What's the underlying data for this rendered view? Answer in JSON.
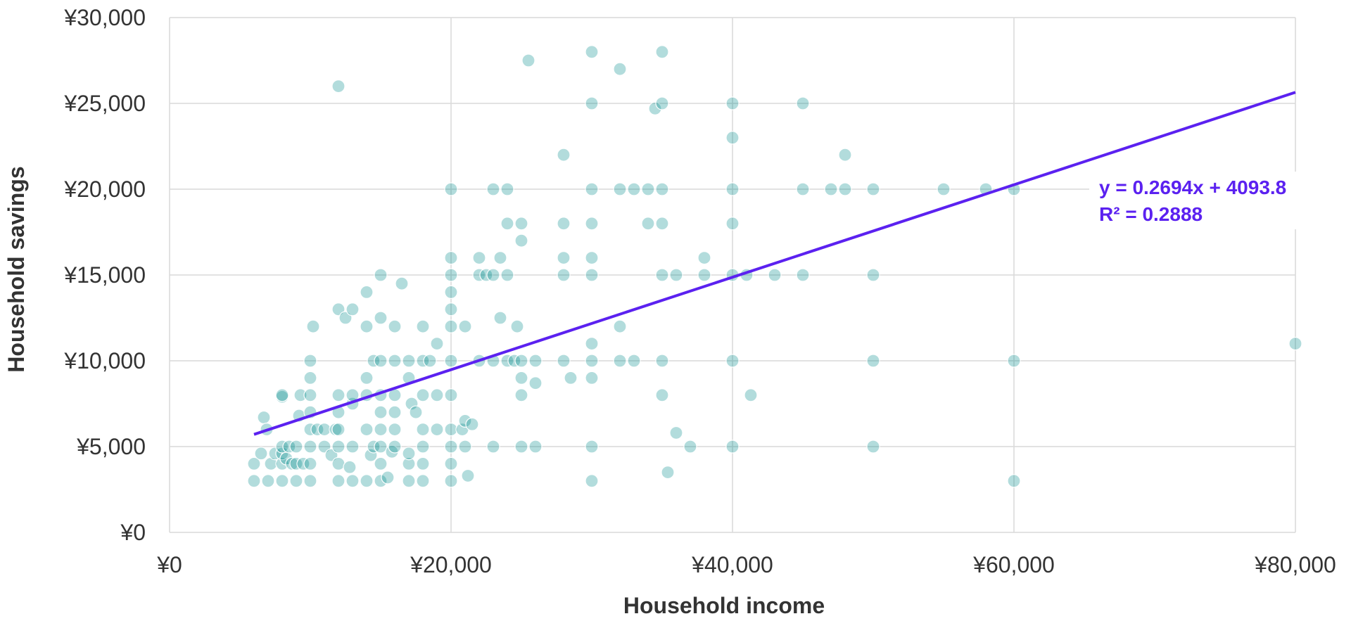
{
  "chart_data": {
    "type": "scatter",
    "title": "",
    "xlabel": "Household income",
    "ylabel": "Household savings",
    "xlim": [
      0,
      80000
    ],
    "ylim": [
      0,
      30000
    ],
    "x_ticks": [
      0,
      20000,
      40000,
      60000,
      80000
    ],
    "y_ticks": [
      0,
      5000,
      10000,
      15000,
      20000,
      25000,
      30000
    ],
    "x_tick_labels": [
      "¥0",
      "¥20,000",
      "¥40,000",
      "¥60,000",
      "¥80,000"
    ],
    "y_tick_labels": [
      "¥0",
      "¥5,000",
      "¥10,000",
      "¥15,000",
      "¥20,000",
      "¥25,000",
      "¥30,000"
    ],
    "grid": true,
    "point_color": "#008B8B",
    "trendline": {
      "type": "linear",
      "slope": 0.2694,
      "intercept": 4093.8,
      "x_range": [
        6000,
        80000
      ],
      "color": "#5B21F0",
      "equation_text": "y = 0.2694x + 4093.8",
      "r2_text": "R² = 0.2888"
    },
    "series": [
      {
        "points": [
          [
            6000,
            3000
          ],
          [
            6000,
            4000
          ],
          [
            6500,
            4600
          ],
          [
            6700,
            6700
          ],
          [
            6900,
            6000
          ],
          [
            7000,
            3000
          ],
          [
            7200,
            4000
          ],
          [
            7500,
            4600
          ],
          [
            8000,
            3000
          ],
          [
            8000,
            4000
          ],
          [
            8000,
            4600
          ],
          [
            8000,
            5000
          ],
          [
            8000,
            7900
          ],
          [
            8000,
            8000
          ],
          [
            8300,
            4300
          ],
          [
            8500,
            5000
          ],
          [
            8700,
            4000
          ],
          [
            9000,
            3000
          ],
          [
            9000,
            4000
          ],
          [
            9000,
            5000
          ],
          [
            9200,
            6800
          ],
          [
            9300,
            8000
          ],
          [
            9500,
            4000
          ],
          [
            10000,
            3000
          ],
          [
            10000,
            4000
          ],
          [
            10000,
            5000
          ],
          [
            10000,
            6000
          ],
          [
            10000,
            7000
          ],
          [
            10000,
            8000
          ],
          [
            10000,
            9000
          ],
          [
            10000,
            10000
          ],
          [
            10200,
            12000
          ],
          [
            10500,
            6000
          ],
          [
            11000,
            5000
          ],
          [
            11000,
            6000
          ],
          [
            11500,
            4500
          ],
          [
            11800,
            6000
          ],
          [
            12000,
            3000
          ],
          [
            12000,
            4000
          ],
          [
            12000,
            5000
          ],
          [
            12000,
            6000
          ],
          [
            12000,
            7000
          ],
          [
            12000,
            8000
          ],
          [
            12000,
            13000
          ],
          [
            12000,
            26000
          ],
          [
            12500,
            12500
          ],
          [
            12800,
            3800
          ],
          [
            13000,
            3000
          ],
          [
            13000,
            5000
          ],
          [
            13000,
            7500
          ],
          [
            13000,
            8000
          ],
          [
            13000,
            13000
          ],
          [
            14000,
            3000
          ],
          [
            14000,
            6000
          ],
          [
            14000,
            8000
          ],
          [
            14000,
            9000
          ],
          [
            14000,
            12000
          ],
          [
            14000,
            14000
          ],
          [
            14300,
            4500
          ],
          [
            14500,
            5000
          ],
          [
            14500,
            10000
          ],
          [
            15000,
            3000
          ],
          [
            15000,
            4000
          ],
          [
            15000,
            5000
          ],
          [
            15000,
            6000
          ],
          [
            15000,
            7000
          ],
          [
            15000,
            8000
          ],
          [
            15000,
            10000
          ],
          [
            15000,
            12500
          ],
          [
            15000,
            15000
          ],
          [
            15500,
            3200
          ],
          [
            15800,
            4700
          ],
          [
            16000,
            5000
          ],
          [
            16000,
            6000
          ],
          [
            16000,
            7000
          ],
          [
            16000,
            8000
          ],
          [
            16000,
            10000
          ],
          [
            16000,
            12000
          ],
          [
            16500,
            14500
          ],
          [
            17000,
            3000
          ],
          [
            17000,
            4000
          ],
          [
            17000,
            4600
          ],
          [
            17000,
            9000
          ],
          [
            17000,
            10000
          ],
          [
            17200,
            7500
          ],
          [
            17500,
            7000
          ],
          [
            18000,
            3000
          ],
          [
            18000,
            4000
          ],
          [
            18000,
            5000
          ],
          [
            18000,
            6000
          ],
          [
            18000,
            8000
          ],
          [
            18000,
            10000
          ],
          [
            18000,
            12000
          ],
          [
            18500,
            10000
          ],
          [
            19000,
            6000
          ],
          [
            19000,
            8000
          ],
          [
            19000,
            11000
          ],
          [
            20000,
            3000
          ],
          [
            20000,
            4000
          ],
          [
            20000,
            5000
          ],
          [
            20000,
            6000
          ],
          [
            20000,
            8000
          ],
          [
            20000,
            10000
          ],
          [
            20000,
            12000
          ],
          [
            20000,
            13000
          ],
          [
            20000,
            14000
          ],
          [
            20000,
            15000
          ],
          [
            20000,
            16000
          ],
          [
            20000,
            20000
          ],
          [
            20800,
            6000
          ],
          [
            21000,
            5000
          ],
          [
            21000,
            6500
          ],
          [
            21000,
            12000
          ],
          [
            21200,
            3300
          ],
          [
            21500,
            6300
          ],
          [
            22000,
            10000
          ],
          [
            22000,
            15000
          ],
          [
            22000,
            16000
          ],
          [
            22500,
            15000
          ],
          [
            23000,
            5000
          ],
          [
            23000,
            10000
          ],
          [
            23000,
            15000
          ],
          [
            23000,
            20000
          ],
          [
            23500,
            12500
          ],
          [
            23500,
            16000
          ],
          [
            24000,
            10000
          ],
          [
            24000,
            15000
          ],
          [
            24000,
            18000
          ],
          [
            24000,
            20000
          ],
          [
            24500,
            10000
          ],
          [
            24700,
            12000
          ],
          [
            25000,
            5000
          ],
          [
            25000,
            8000
          ],
          [
            25000,
            9000
          ],
          [
            25000,
            10000
          ],
          [
            25000,
            17000
          ],
          [
            25000,
            18000
          ],
          [
            25500,
            27500
          ],
          [
            26000,
            5000
          ],
          [
            26000,
            8700
          ],
          [
            26000,
            10000
          ],
          [
            28000,
            10000
          ],
          [
            28000,
            15000
          ],
          [
            28000,
            16000
          ],
          [
            28000,
            18000
          ],
          [
            28000,
            22000
          ],
          [
            28500,
            9000
          ],
          [
            30000,
            3000
          ],
          [
            30000,
            5000
          ],
          [
            30000,
            9000
          ],
          [
            30000,
            10000
          ],
          [
            30000,
            11000
          ],
          [
            30000,
            15000
          ],
          [
            30000,
            16000
          ],
          [
            30000,
            18000
          ],
          [
            30000,
            20000
          ],
          [
            30000,
            25000
          ],
          [
            30000,
            28000
          ],
          [
            32000,
            10000
          ],
          [
            32000,
            12000
          ],
          [
            32000,
            20000
          ],
          [
            32000,
            27000
          ],
          [
            33000,
            10000
          ],
          [
            33000,
            20000
          ],
          [
            34000,
            18000
          ],
          [
            34000,
            20000
          ],
          [
            34500,
            24700
          ],
          [
            35000,
            8000
          ],
          [
            35000,
            10000
          ],
          [
            35000,
            15000
          ],
          [
            35000,
            18000
          ],
          [
            35000,
            20000
          ],
          [
            35000,
            25000
          ],
          [
            35000,
            28000
          ],
          [
            35400,
            3500
          ],
          [
            36000,
            5800
          ],
          [
            36000,
            15000
          ],
          [
            37000,
            5000
          ],
          [
            38000,
            15000
          ],
          [
            38000,
            16000
          ],
          [
            40000,
            5000
          ],
          [
            40000,
            10000
          ],
          [
            40000,
            15000
          ],
          [
            40000,
            18000
          ],
          [
            40000,
            20000
          ],
          [
            40000,
            23000
          ],
          [
            40000,
            25000
          ],
          [
            41000,
            15000
          ],
          [
            41300,
            8000
          ],
          [
            43000,
            15000
          ],
          [
            45000,
            15000
          ],
          [
            45000,
            20000
          ],
          [
            45000,
            25000
          ],
          [
            47000,
            20000
          ],
          [
            48000,
            20000
          ],
          [
            48000,
            22000
          ],
          [
            50000,
            5000
          ],
          [
            50000,
            10000
          ],
          [
            50000,
            15000
          ],
          [
            50000,
            20000
          ],
          [
            55000,
            20000
          ],
          [
            58000,
            20000
          ],
          [
            60000,
            3000
          ],
          [
            60000,
            10000
          ],
          [
            60000,
            20000
          ],
          [
            80000,
            11000
          ]
        ]
      }
    ]
  }
}
